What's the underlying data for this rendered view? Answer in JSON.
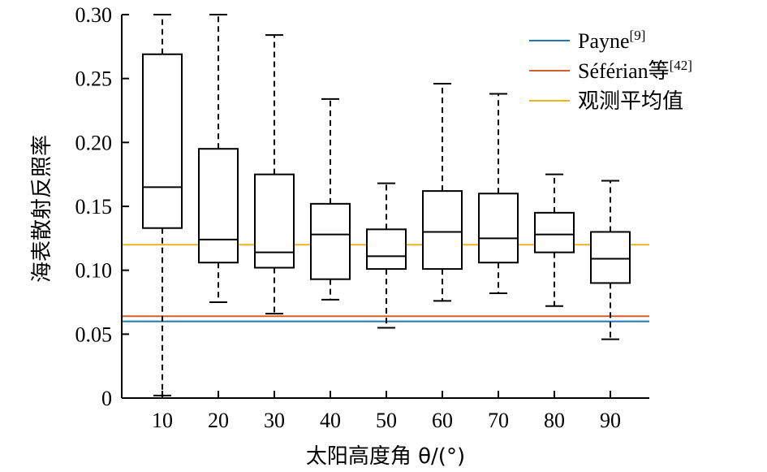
{
  "chart_data": {
    "type": "box",
    "title": "",
    "xlabel": "太阳高度角 θ/(°)",
    "ylabel": "海表散射反照率",
    "ylim": [
      0,
      0.3
    ],
    "yticks": [
      0,
      0.05,
      0.1,
      0.15,
      0.2,
      0.25,
      0.3
    ],
    "ytick_labels": [
      "0",
      "0.05",
      "0.10",
      "0.15",
      "0.20",
      "0.25",
      "0.30"
    ],
    "categories": [
      "10",
      "20",
      "30",
      "40",
      "50",
      "60",
      "70",
      "80",
      "90"
    ],
    "boxes": [
      {
        "x": "10",
        "whisker_low": 0.002,
        "q1": 0.133,
        "median": 0.165,
        "q3": 0.269,
        "whisker_high": 0.3
      },
      {
        "x": "20",
        "whisker_low": 0.075,
        "q1": 0.106,
        "median": 0.124,
        "q3": 0.195,
        "whisker_high": 0.3
      },
      {
        "x": "30",
        "whisker_low": 0.066,
        "q1": 0.102,
        "median": 0.114,
        "q3": 0.175,
        "whisker_high": 0.284
      },
      {
        "x": "40",
        "whisker_low": 0.077,
        "q1": 0.093,
        "median": 0.128,
        "q3": 0.152,
        "whisker_high": 0.234
      },
      {
        "x": "50",
        "whisker_low": 0.055,
        "q1": 0.101,
        "median": 0.111,
        "q3": 0.132,
        "whisker_high": 0.168
      },
      {
        "x": "60",
        "whisker_low": 0.076,
        "q1": 0.101,
        "median": 0.13,
        "q3": 0.162,
        "whisker_high": 0.246
      },
      {
        "x": "70",
        "whisker_low": 0.082,
        "q1": 0.106,
        "median": 0.125,
        "q3": 0.16,
        "whisker_high": 0.238
      },
      {
        "x": "80",
        "whisker_low": 0.072,
        "q1": 0.114,
        "median": 0.128,
        "q3": 0.145,
        "whisker_high": 0.175
      },
      {
        "x": "90",
        "whisker_low": 0.046,
        "q1": 0.09,
        "median": 0.109,
        "q3": 0.13,
        "whisker_high": 0.17
      }
    ],
    "reference_lines": [
      {
        "name": "Payne",
        "sup": "[9]",
        "value": 0.06,
        "color": "#1f77b4"
      },
      {
        "name": "Séférian等",
        "sup": "[42]",
        "value": 0.064,
        "color": "#d2602a"
      },
      {
        "name": "观测平均值",
        "sup": "",
        "value": 0.12,
        "color": "#edb120"
      }
    ],
    "legend_position": "top-right",
    "grid": false
  }
}
